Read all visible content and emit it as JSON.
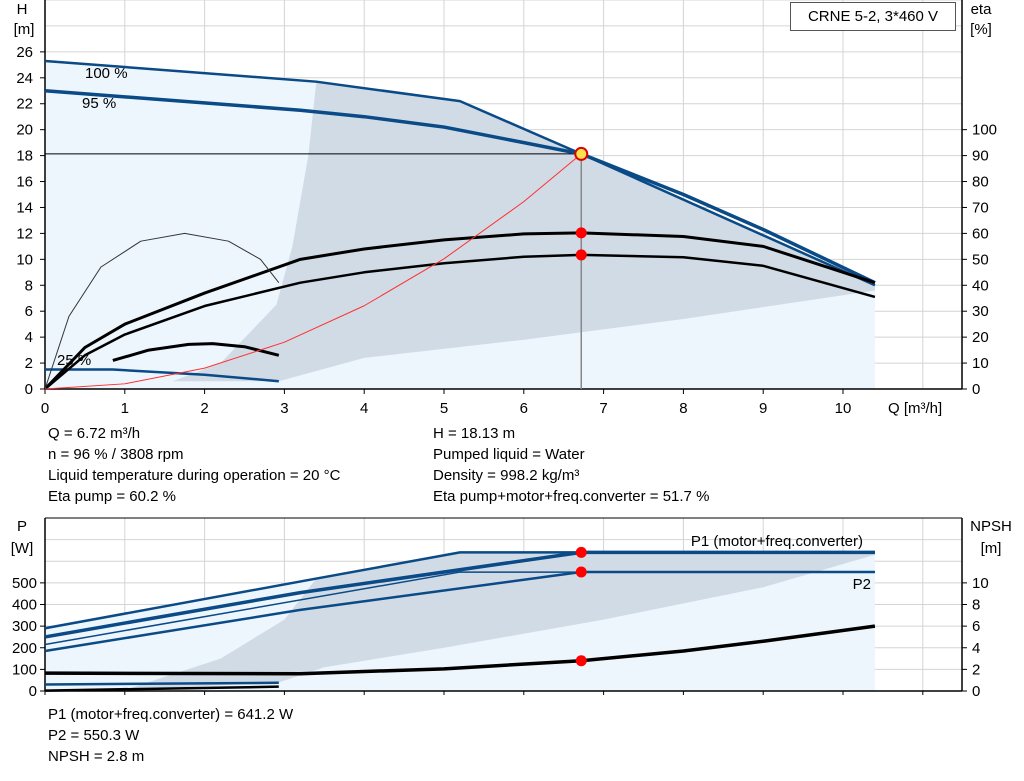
{
  "chart_data": [
    {
      "type": "line",
      "title": "CRNE 5-2, 3*460 V",
      "xlabel": "Q [m³/h]",
      "ylabel_left": [
        "H",
        "[m]"
      ],
      "ylabel_right": [
        "eta",
        "[%]"
      ],
      "xlim": [
        0,
        11
      ],
      "ylim": [
        0,
        30
      ],
      "y2lim": [
        0,
        150
      ],
      "xticks": [
        "0",
        "1",
        "2",
        "3",
        "4",
        "5",
        "6",
        "7",
        "8",
        "9",
        "10"
      ],
      "yticks": [
        "0",
        "2",
        "4",
        "6",
        "8",
        "10",
        "12",
        "14",
        "16",
        "18",
        "20",
        "22",
        "24",
        "26"
      ],
      "y2ticks": [
        "0",
        "10",
        "20",
        "30",
        "40",
        "50",
        "60",
        "70",
        "80",
        "90",
        "100"
      ],
      "grid": true,
      "annotations": [
        "100 %",
        "95 %",
        "25 %"
      ],
      "duty_point": {
        "Q": 6.72,
        "H": 18.13,
        "eta_pump": 60.2,
        "eta_total": 51.7
      },
      "series": [
        {
          "role": "H 100 %",
          "axis": "H",
          "x": [
            0,
            3.4,
            5.2,
            6.72,
            10.4
          ],
          "y": [
            25.3,
            23.7,
            22.2,
            18.13,
            8.0
          ]
        },
        {
          "role": "H 95 %",
          "axis": "H",
          "x": [
            0,
            3.2,
            4,
            5,
            6,
            6.72,
            8,
            9,
            10.4
          ],
          "y": [
            23.0,
            21.5,
            21.0,
            20.2,
            19.0,
            18.13,
            15.0,
            12.3,
            8.2
          ]
        },
        {
          "role": "H 25 %",
          "axis": "H",
          "x": [
            0,
            0.85,
            2,
            2.93
          ],
          "y": [
            1.5,
            1.5,
            1.1,
            0.6
          ]
        },
        {
          "role": "eta pump",
          "axis": "eta",
          "x": [
            0,
            0.5,
            1,
            2,
            3.2,
            4,
            5,
            6,
            6.72,
            8,
            9,
            10.4
          ],
          "y": [
            0,
            16,
            25,
            37,
            50,
            54,
            57.5,
            59.8,
            60.2,
            58.8,
            55,
            41
          ]
        },
        {
          "role": "eta pump+motor+freq.converter",
          "axis": "eta",
          "x": [
            0,
            0.5,
            1,
            2,
            3.2,
            4,
            5,
            6,
            6.72,
            8,
            9,
            10.4
          ],
          "y": [
            0,
            13,
            21,
            32,
            41,
            45,
            48.5,
            51,
            51.7,
            50.8,
            47.5,
            35.5
          ]
        },
        {
          "role": "eta pump 25 %",
          "axis": "eta",
          "x": [
            0,
            0.3,
            0.7,
            1.2,
            1.75,
            2.3,
            2.7,
            2.93
          ],
          "y": [
            0,
            28,
            47,
            57,
            60,
            57,
            50,
            41
          ]
        },
        {
          "role": "eta total 25 %",
          "axis": "eta",
          "x": [
            0.85,
            1.3,
            1.8,
            2.1,
            2.5,
            2.93
          ],
          "y": [
            11,
            15,
            17.2,
            17.5,
            16.3,
            13
          ]
        },
        {
          "role": "system curve",
          "axis": "H",
          "x": [
            0,
            1,
            2,
            3,
            4,
            5,
            6,
            6.72
          ],
          "y": [
            0,
            0.4,
            1.61,
            3.61,
            6.42,
            10.04,
            14.45,
            18.13
          ]
        }
      ]
    },
    {
      "type": "line",
      "ylabel_left": [
        "P",
        "[W]"
      ],
      "ylabel_right": [
        "NPSH",
        "[m]"
      ],
      "xlim": [
        0,
        11
      ],
      "ylim": [
        0,
        800
      ],
      "y2lim": [
        0,
        16
      ],
      "yticks": [
        "0",
        "100",
        "200",
        "300",
        "400",
        "500"
      ],
      "y2ticks": [
        "0",
        "2",
        "4",
        "6",
        "8",
        "10"
      ],
      "grid": true,
      "legend": [
        "P1 (motor+freq.converter)",
        "P2"
      ],
      "series": [
        {
          "role": "P1 100 %",
          "axis": "P",
          "x": [
            0,
            3.4,
            5.2,
            10.4
          ],
          "y": [
            290,
            520,
            641,
            641
          ]
        },
        {
          "role": "P1 95 %",
          "axis": "P",
          "x": [
            0,
            3.2,
            6.72,
            10.4
          ],
          "y": [
            250,
            455,
            641.2,
            641.2
          ]
        },
        {
          "role": "P2 100 %",
          "axis": "P",
          "x": [
            0,
            5.2,
            10.4
          ],
          "y": [
            215,
            550,
            550
          ]
        },
        {
          "role": "P2 95 %",
          "axis": "P",
          "x": [
            0,
            3.2,
            6.72,
            10.4
          ],
          "y": [
            185,
            375,
            550.3,
            550.3
          ]
        },
        {
          "role": "P1 25 %",
          "axis": "P",
          "x": [
            0,
            2.93
          ],
          "y": [
            30,
            38
          ]
        },
        {
          "role": "P2 25 %",
          "axis": "P",
          "x": [
            0,
            2.93
          ],
          "y": [
            2,
            20
          ]
        },
        {
          "role": "NPSH",
          "axis": "NPSH",
          "x": [
            0,
            3.2,
            5,
            6.72,
            8,
            9,
            10.4
          ],
          "y": [
            1.65,
            1.6,
            2.05,
            2.8,
            3.7,
            4.6,
            6.0
          ]
        }
      ],
      "duty_point": {
        "P1": 641.2,
        "P2": 550.3,
        "NPSH": 2.8
      }
    }
  ],
  "info_top_left": [
    "Q = 6.72 m³/h",
    "n = 96 % / 3808 rpm",
    "Liquid temperature during operation = 20 °C",
    "Eta pump = 60.2 %"
  ],
  "info_top_right": [
    "H = 18.13 m",
    "Pumped liquid = Water",
    "Density = 998.2 kg/m³",
    "Eta pump+motor+freq.converter = 51.7 %"
  ],
  "info_bottom": [
    "P1 (motor+freq.converter) = 641.2 W",
    "P2 = 550.3 W",
    "NPSH = 2.8 m"
  ],
  "colors": {
    "curve_blue": "#0a4a86",
    "curve_black": "#000000",
    "system_curve": "#ff3030",
    "duty_point": "#ff0000",
    "region_dark": "#d0dbe6",
    "region_light": "#edf5fd",
    "grid": "#d4d4d4"
  }
}
